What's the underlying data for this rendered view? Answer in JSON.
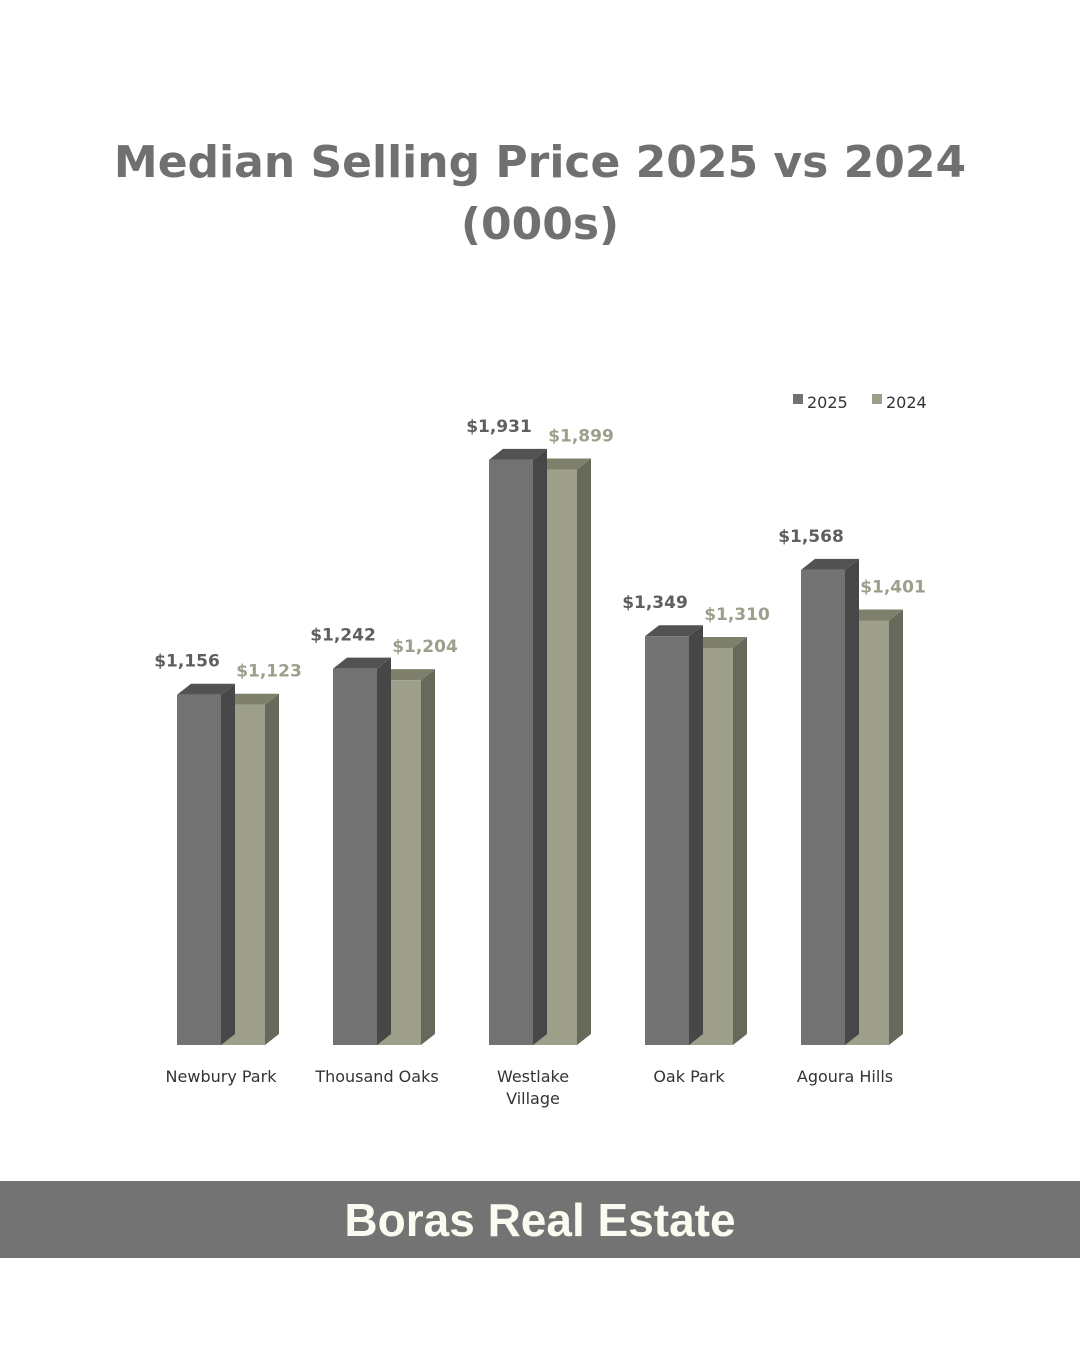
{
  "chart_data": {
    "type": "bar",
    "title_line1": "Median Selling Price 2025 vs 2024",
    "title_line2": "(000s)",
    "categories": [
      "Newbury Park",
      "Thousand Oaks",
      "Westlake Village",
      "Oak Park",
      "Agoura Hills"
    ],
    "category_lines": [
      [
        "Newbury Park"
      ],
      [
        "Thousand Oaks"
      ],
      [
        "Westlake",
        "Village"
      ],
      [
        "Oak Park"
      ],
      [
        "Agoura Hills"
      ]
    ],
    "series": [
      {
        "name": "2025",
        "values": [
          1156,
          1242,
          1931,
          1349,
          1568
        ],
        "labels": [
          "$1,156",
          "$1,242",
          "$1,931",
          "$1,349",
          "$1,568"
        ],
        "color": "#727272",
        "top_color": "#525252",
        "side_color": "#474747",
        "label_color": "#5f5f5f"
      },
      {
        "name": "2024",
        "values": [
          1123,
          1204,
          1899,
          1310,
          1401
        ],
        "labels": [
          "$1,123",
          "$1,204",
          "$1,899",
          "$1,310",
          "$1,401"
        ],
        "color": "#9d9f8b",
        "top_color": "#7e806c",
        "side_color": "#67695a",
        "label_color": "#9d9f8b"
      }
    ],
    "ylim": [
      0,
      2000
    ],
    "legend": "top-right",
    "grid": false
  },
  "footer": {
    "brand": "Boras Real Estate"
  }
}
